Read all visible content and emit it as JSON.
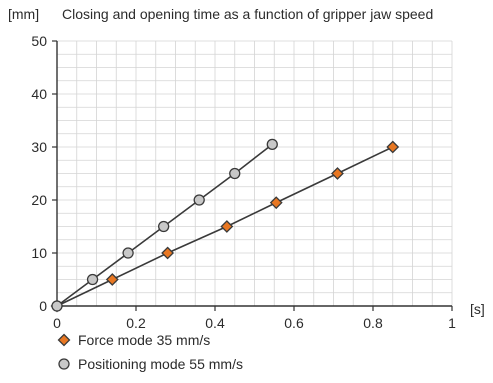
{
  "chart_data": {
    "type": "scatter",
    "title": "Closing and opening time as a function of gripper jaw speed",
    "ylabel": "[mm]",
    "xlabel": "[s]",
    "xlim": [
      0,
      1
    ],
    "ylim": [
      0,
      50
    ],
    "x_ticks": [
      0,
      0.2,
      0.4,
      0.6,
      0.8,
      1
    ],
    "x_tick_labels": [
      "0",
      "0.2",
      "0.4",
      "0.6",
      "0.8",
      "1"
    ],
    "y_ticks": [
      0,
      10,
      20,
      30,
      40,
      50
    ],
    "y_tick_labels": [
      "0",
      "10",
      "20",
      "30",
      "40",
      "50"
    ],
    "grid": true,
    "legend_position": "bottom-left",
    "series": [
      {
        "name": "Force mode 35 mm/s",
        "marker": "diamond",
        "color": "#e87722",
        "points": [
          [
            0,
            0
          ],
          [
            0.14,
            5
          ],
          [
            0.28,
            10
          ],
          [
            0.43,
            15
          ],
          [
            0.555,
            19.5
          ],
          [
            0.71,
            25
          ],
          [
            0.85,
            30
          ]
        ]
      },
      {
        "name": "Positioning mode 55 mm/s",
        "marker": "circle",
        "color": "#c8c8c8",
        "points": [
          [
            0,
            0
          ],
          [
            0.09,
            5
          ],
          [
            0.18,
            10
          ],
          [
            0.27,
            15
          ],
          [
            0.36,
            20
          ],
          [
            0.45,
            25
          ],
          [
            0.545,
            30.5
          ]
        ]
      }
    ]
  }
}
